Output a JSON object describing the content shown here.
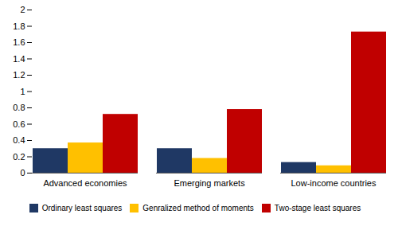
{
  "chart_data": {
    "type": "bar",
    "categories": [
      "Advanced economies",
      "Emerging markets",
      "Low-income countries"
    ],
    "series": [
      {
        "name": "Ordinary least squares",
        "color": "#1F3864",
        "values": [
          0.3,
          0.3,
          0.13
        ]
      },
      {
        "name": "Genralized method of moments",
        "color": "#FFC000",
        "values": [
          0.37,
          0.18,
          0.09
        ]
      },
      {
        "name": "Two-stage least squares",
        "color": "#C00000",
        "values": [
          0.72,
          0.78,
          1.73
        ]
      }
    ],
    "ylim": [
      0,
      2
    ],
    "yticks": [
      0,
      0.2,
      0.4,
      0.6,
      0.8,
      1,
      1.2,
      1.4,
      1.6,
      1.8,
      2
    ],
    "grid": false,
    "legend": "bottom"
  }
}
